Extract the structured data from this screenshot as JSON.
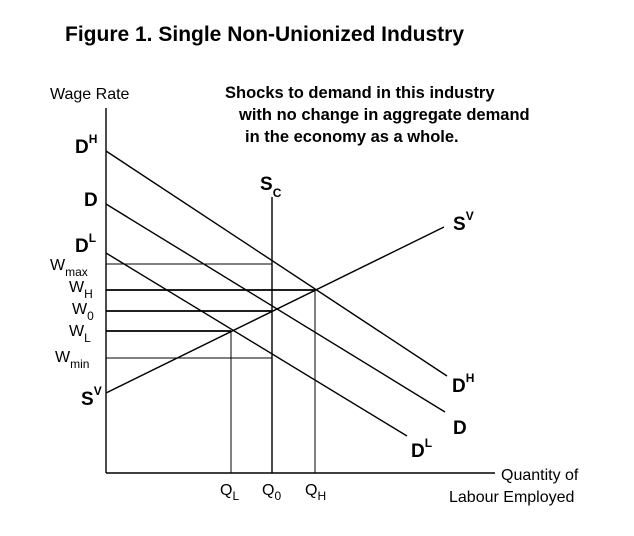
{
  "title": "Figure 1.  Single Non-Unionized Industry",
  "note": {
    "line1": "Shocks to demand in this industry",
    "line2": "with no change in aggregate demand",
    "line3": "in the economy as a whole."
  },
  "axes": {
    "y_label": "Wage Rate",
    "x_label_line1": "Quantity of",
    "x_label_line2": "Labour Employed"
  },
  "curves": {
    "demand_high": {
      "main": "D",
      "sup": "H"
    },
    "demand": {
      "main": "D"
    },
    "demand_low": {
      "main": "D",
      "sup": "L"
    },
    "supply_vertical": {
      "main": "S",
      "sub": "C"
    },
    "supply_upward": {
      "main": "S",
      "sup": "V"
    }
  },
  "wage_levels": {
    "w_max": {
      "main": "W",
      "sub": "max"
    },
    "w_h": {
      "main": "W",
      "sub": "H"
    },
    "w_0": {
      "main": "W",
      "sub": "0"
    },
    "w_l": {
      "main": "W",
      "sub": "L"
    },
    "w_min": {
      "main": "W",
      "sub": "min"
    }
  },
  "quantities": {
    "q_l": {
      "main": "Q",
      "sub": "L"
    },
    "q_0": {
      "main": "Q",
      "sub": "0"
    },
    "q_h": {
      "main": "Q",
      "sub": "H"
    }
  }
}
